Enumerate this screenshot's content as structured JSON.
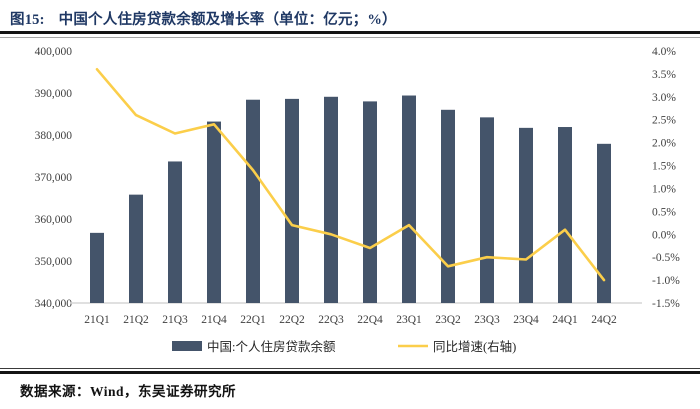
{
  "title": {
    "tag": "图15:",
    "text": "中国个人住房贷款余额及增长率（单位：亿元；%）"
  },
  "footer": {
    "source": "数据来源：Wind，东吴证券研究所"
  },
  "colors": {
    "bar": "#44546A",
    "line": "#FBCE4A",
    "title_text": "#1F3864",
    "axis_text": "#404040",
    "baseline": "#D6D6D6"
  },
  "chart_data": {
    "type": "bar",
    "subtype": "bar+line-dual-axis",
    "title": "中国个人住房贷款余额及增长率（单位：亿元；%）",
    "categories": [
      "21Q1",
      "21Q2",
      "21Q3",
      "21Q4",
      "22Q1",
      "22Q2",
      "22Q3",
      "22Q4",
      "23Q1",
      "23Q2",
      "23Q3",
      "23Q4",
      "24Q1",
      "24Q2"
    ],
    "series": [
      {
        "name": "中国:个人住房贷款余额",
        "type": "bar",
        "axis": "left",
        "values": [
          356700,
          365800,
          373700,
          383200,
          388400,
          388600,
          389100,
          388000,
          389400,
          386000,
          384200,
          381700,
          381900,
          377900
        ]
      },
      {
        "name": "同比增速(右轴)",
        "type": "line",
        "axis": "right",
        "values": [
          3.6,
          2.6,
          2.2,
          2.4,
          1.4,
          0.2,
          0.0,
          -0.3,
          0.2,
          -0.7,
          -0.5,
          -0.55,
          0.1,
          -1.0
        ]
      }
    ],
    "left_axis": {
      "min": 340000,
      "max": 400000,
      "step": 10000,
      "ticks": [
        "400,000",
        "390,000",
        "380,000",
        "370,000",
        "360,000",
        "350,000",
        "340,000"
      ]
    },
    "right_axis": {
      "min": -1.5,
      "max": 4.0,
      "step": 0.5,
      "ticks": [
        "4.0%",
        "3.5%",
        "3.0%",
        "2.5%",
        "2.0%",
        "1.5%",
        "1.0%",
        "0.5%",
        "0.0%",
        "-0.5%",
        "-1.0%",
        "-1.5%"
      ]
    },
    "grid": "off",
    "legend_position": "bottom"
  }
}
